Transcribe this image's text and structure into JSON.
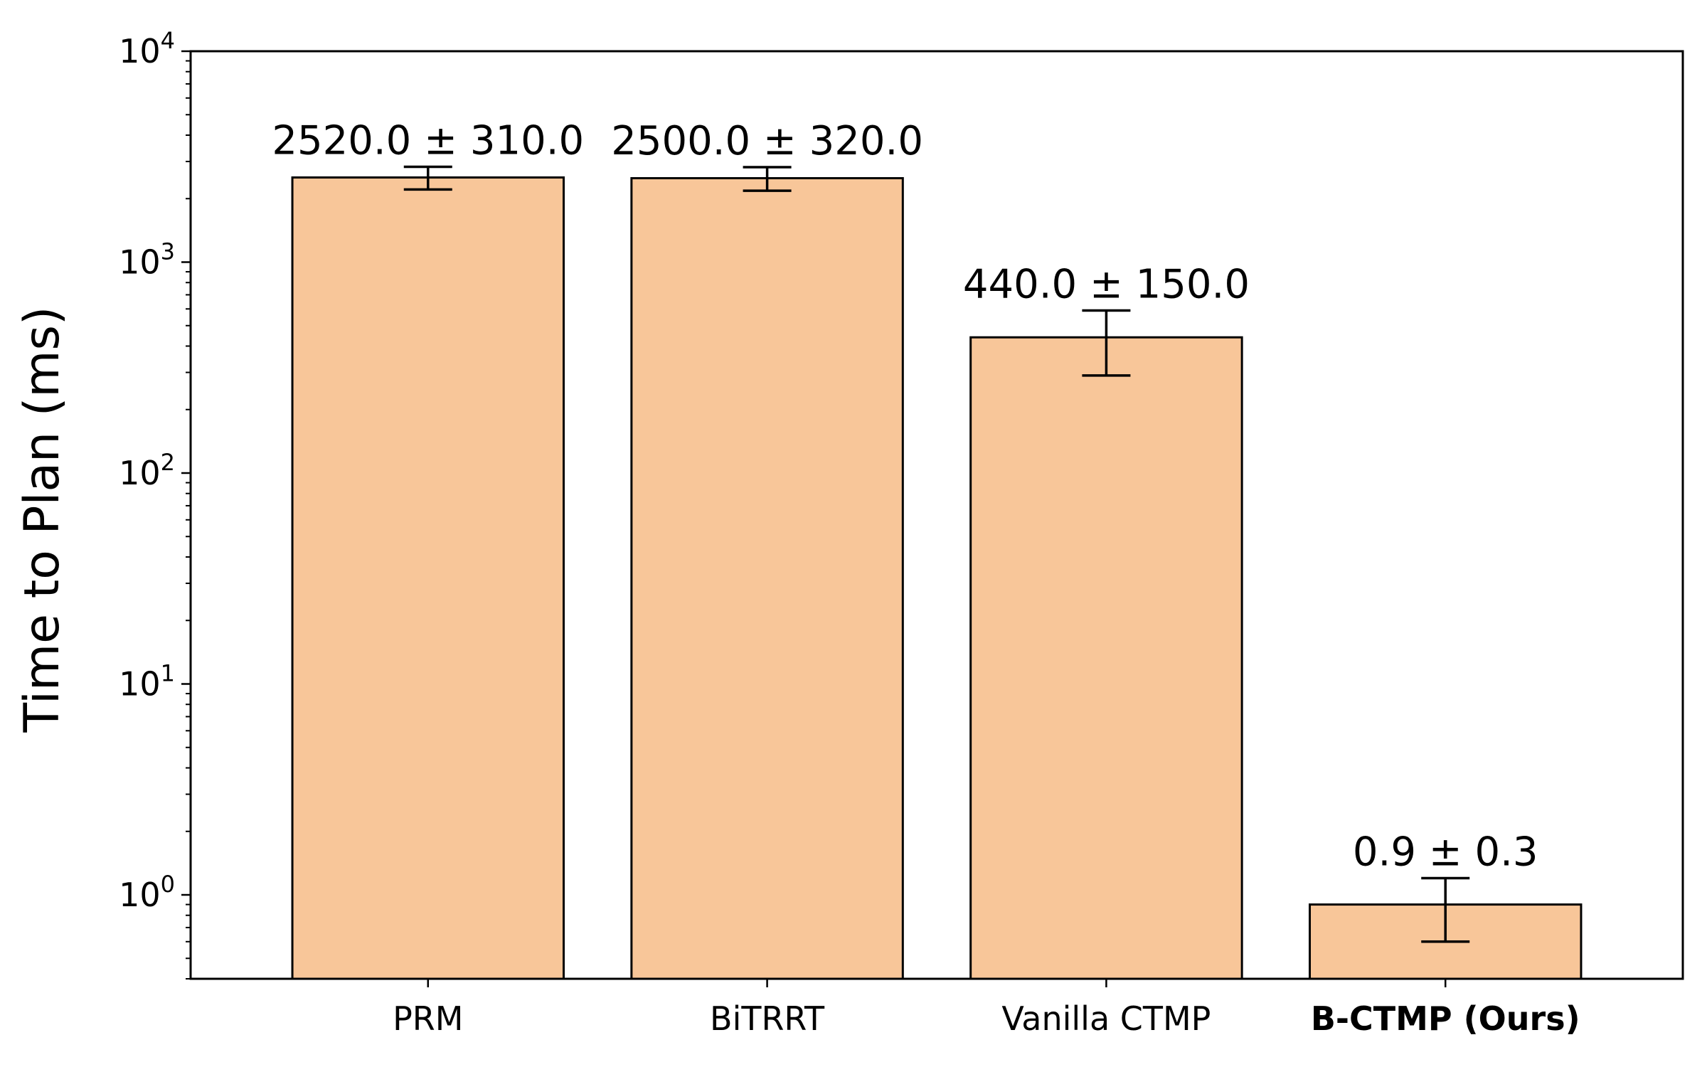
{
  "chart_data": {
    "type": "bar",
    "title": "",
    "xlabel": "",
    "ylabel": "Time to Plan (ms)",
    "yscale": "log",
    "ylim": [
      0.4,
      10000
    ],
    "yticks": [
      {
        "value": 1,
        "base": "10",
        "exp": "0"
      },
      {
        "value": 10,
        "base": "10",
        "exp": "1"
      },
      {
        "value": 100,
        "base": "10",
        "exp": "2"
      },
      {
        "value": 1000,
        "base": "10",
        "exp": "3"
      },
      {
        "value": 10000,
        "base": "10",
        "exp": "4"
      }
    ],
    "categories": [
      "PRM",
      "BiTRRT",
      "Vanilla CTMP",
      "B-CTMP (Ours)"
    ],
    "category_bold": [
      false,
      false,
      false,
      true
    ],
    "values": [
      2520.0,
      2500.0,
      440.0,
      0.9
    ],
    "errors": [
      310.0,
      320.0,
      150.0,
      0.3
    ],
    "data_labels": [
      "2520.0 ± 310.0",
      "2500.0 ± 320.0",
      "440.0 ± 150.0",
      "0.9 ± 0.3"
    ],
    "bar_color": "#f8c699",
    "edge_color": "#000000",
    "grid": false,
    "legend": "none"
  }
}
